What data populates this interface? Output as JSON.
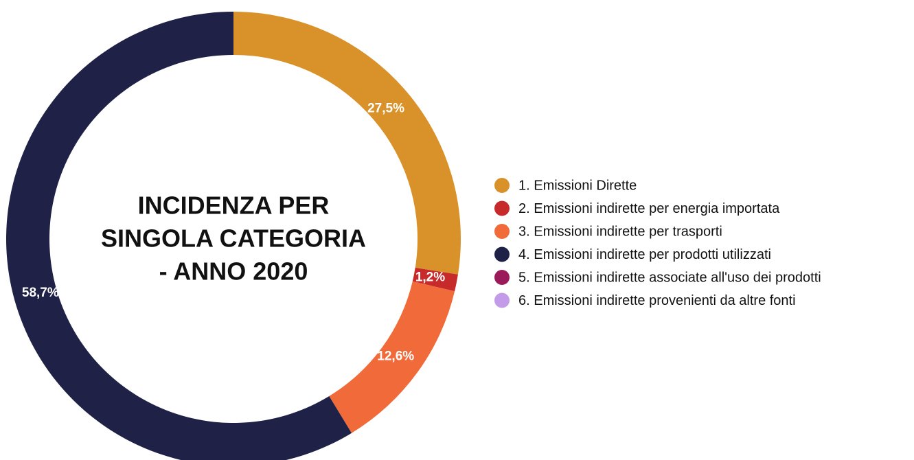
{
  "chart_data": {
    "type": "donut",
    "title": [
      "INCIDENZA PER",
      "SINGOLA CATEGORIA",
      "- ANNO 2020"
    ],
    "categories": [
      "1. Emissioni Dirette",
      "2. Emissioni indirette per energia importata",
      "3. Emissioni indirette per trasporti",
      "4. Emissioni indirette per prodotti utilizzati",
      "5. Emissioni indirette associate all'uso dei prodotti",
      "6. Emissioni indirette provenienti da altre fonti"
    ],
    "values": [
      27.5,
      1.2,
      12.6,
      58.7,
      0,
      0
    ],
    "value_labels": [
      "27,5%",
      "1,2%",
      "12,6%",
      "58,7%",
      null,
      null
    ],
    "colors": [
      "#d9922a",
      "#c62a2a",
      "#f06a3a",
      "#1f2147",
      "#9b1b5a",
      "#c49be8"
    ],
    "legend": "right"
  }
}
